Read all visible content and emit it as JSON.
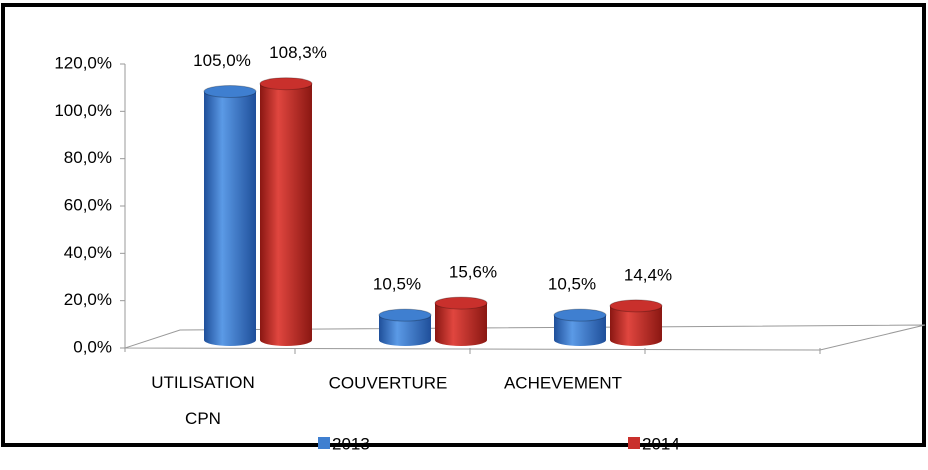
{
  "chart_data": {
    "type": "bar3d",
    "categories": [
      "UTILISATION CPN",
      "COUVERTURE",
      "ACHEVEMENT"
    ],
    "series": [
      {
        "name": "2013",
        "color": "#3f7fd0",
        "values": [
          105.0,
          10.5,
          10.5
        ],
        "value_labels": [
          "105,0%",
          "10,5%",
          "10,5%"
        ]
      },
      {
        "name": "2014",
        "color": "#c9302c",
        "values": [
          108.3,
          15.6,
          14.4
        ],
        "value_labels": [
          "108,3%",
          "15,6%",
          "14,4%"
        ]
      }
    ],
    "ylim": [
      0,
      120
    ],
    "yticks": [
      {
        "value": 0,
        "label": "0,0%"
      },
      {
        "value": 20,
        "label": "20,0%"
      },
      {
        "value": 40,
        "label": "40,0%"
      },
      {
        "value": 60,
        "label": "60,0%"
      },
      {
        "value": 80,
        "label": "80,0%"
      },
      {
        "value": 100,
        "label": "100,0%"
      },
      {
        "value": 120,
        "label": "120,0%"
      }
    ],
    "legend": "bottom"
  }
}
